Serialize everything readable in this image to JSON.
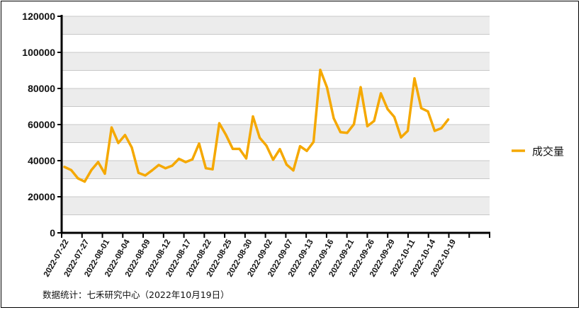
{
  "chart_data": {
    "type": "line",
    "ylim": [
      0,
      120000
    ],
    "y_ticks": [
      "0",
      "20000",
      "40000",
      "60000",
      "80000",
      "100000",
      "120000"
    ],
    "x_tick_labels": [
      "2022-07-22",
      "2022-07-27",
      "2022-08-01",
      "2022-08-04",
      "2022-08-09",
      "2022-08-12",
      "2022-08-17",
      "2022-08-22",
      "2022-08-25",
      "2022-08-30",
      "2022-09-02",
      "2022-09-07",
      "2022-09-13",
      "2022-09-16",
      "2022-09-21",
      "2022-09-26",
      "2022-09-29",
      "2022-10-11",
      "2022-10-14",
      "2022-10-19"
    ],
    "legend_position": "right",
    "grid": true,
    "series": [
      {
        "name": "成交量",
        "color": "#f5a800",
        "values": [
          36500,
          34800,
          30200,
          28400,
          34800,
          39200,
          32800,
          58400,
          49800,
          54200,
          47300,
          33200,
          31800,
          34600,
          37600,
          35800,
          37200,
          41000,
          39200,
          40700,
          49500,
          35800,
          35200,
          60700,
          54200,
          46500,
          46500,
          41200,
          64500,
          52700,
          48300,
          40500,
          46400,
          37800,
          34600,
          48000,
          45400,
          50400,
          90300,
          80600,
          63500,
          55800,
          55400,
          60200,
          80700,
          59100,
          62000,
          77300,
          68600,
          64200,
          52900,
          56500,
          85600,
          69100,
          67300,
          56500,
          58000,
          62800
        ]
      }
    ]
  },
  "source_note": "数据统计：七禾研究中心（2022年10月19日）"
}
